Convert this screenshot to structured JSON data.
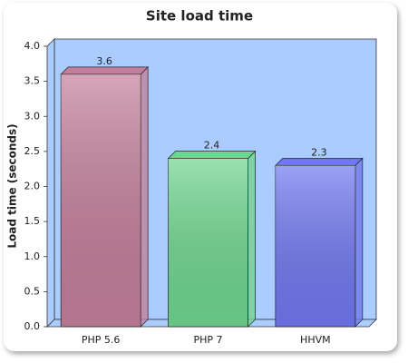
{
  "chart_data": {
    "type": "bar3d",
    "title": "Site load time",
    "y_label": "Load time (seconds)",
    "categories": [
      "PHP 5.6",
      "PHP 7",
      "HHVM"
    ],
    "values": [
      3.6,
      2.4,
      2.3
    ],
    "colors": [
      "#c47f9c",
      "#6fd690",
      "#7078f0"
    ],
    "ylim": [
      0,
      4
    ],
    "yticks": [
      {
        "value": 0,
        "label": "0.0"
      },
      0.5,
      {
        "value": 1,
        "label": "1.0"
      },
      1.5,
      {
        "value": 2,
        "label": "2.0"
      },
      2.5,
      {
        "value": 3,
        "label": "3.0"
      },
      3.5,
      {
        "value": 4,
        "label": "4.0"
      }
    ]
  }
}
